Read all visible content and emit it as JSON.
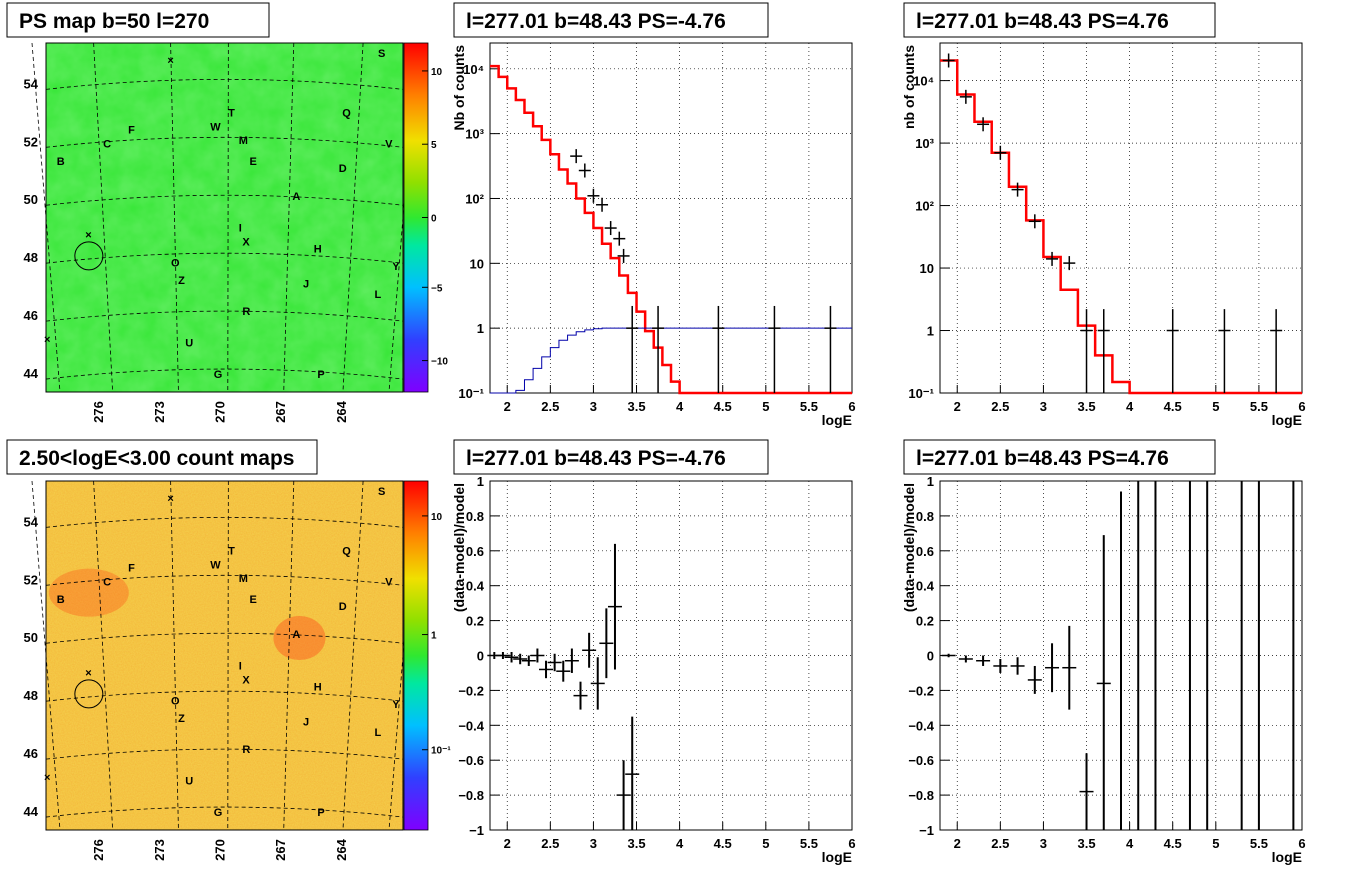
{
  "colors": {
    "map_green": "#33e833",
    "map_orange": "#f0a020",
    "model_red": "#ff0000",
    "bg_blue": "#0000aa"
  },
  "palette": [
    "#7f00ff",
    "#6a1cff",
    "#4040ff",
    "#2060ff",
    "#0090ff",
    "#00c0ff",
    "#00e0e0",
    "#00e8a0",
    "#20e860",
    "#40e020",
    "#80e000",
    "#c0e000",
    "#f0e000",
    "#ffc000",
    "#ff9000",
    "#ff6000",
    "#ff3000",
    "#ff0000"
  ],
  "chart_data": [
    {
      "id": "ps-map",
      "type": "heatmap",
      "title": "PS map b=50 l=270",
      "x_ticks": [
        "276",
        "273",
        "270",
        "267",
        "264"
      ],
      "y_ticks": [
        "54",
        "52",
        "50",
        "48",
        "46",
        "44"
      ],
      "colorbar_ticks": [
        "10",
        "5",
        "0",
        "−5",
        "−10"
      ],
      "labels": [
        "S",
        "T",
        "W",
        "Q",
        "F",
        "C",
        "M",
        "V",
        "B",
        "E",
        "D",
        "A",
        "I",
        "X",
        "H",
        "O",
        "Y",
        "Z",
        "J",
        "L",
        "R",
        "U",
        "G",
        "P"
      ]
    },
    {
      "id": "count-map",
      "type": "heatmap",
      "title": "2.50<logE<3.00 count maps",
      "x_ticks": [
        "276",
        "273",
        "270",
        "267",
        "264"
      ],
      "y_ticks": [
        "54",
        "52",
        "50",
        "48",
        "46",
        "44"
      ],
      "colorbar_ticks": [
        "10",
        "1",
        "10⁻¹"
      ],
      "labels": [
        "S",
        "T",
        "W",
        "Q",
        "F",
        "C",
        "M",
        "V",
        "B",
        "E",
        "D",
        "A",
        "I",
        "X",
        "H",
        "O",
        "Y",
        "Z",
        "J",
        "L",
        "R",
        "U",
        "G",
        "P"
      ]
    },
    {
      "id": "spectrum-neg",
      "type": "line",
      "title": "l=277.01 b=48.43 PS=-4.76",
      "xlabel": "logE",
      "ylabel": "Nb of counts",
      "x_ticks": [
        "2",
        "2.5",
        "3",
        "3.5",
        "4",
        "4.5",
        "5",
        "5.5",
        "6"
      ],
      "y_ticks": [
        "10⁻¹",
        "1",
        "10",
        "10²",
        "10³",
        "10⁴"
      ],
      "xlim": [
        1.8,
        6
      ],
      "ylog": true,
      "ylim": [
        0.1,
        25000
      ],
      "series": [
        {
          "kind": "model",
          "bin_width": 0.1,
          "x_start": 1.8,
          "values": [
            11000,
            7500,
            5000,
            3300,
            2100,
            1300,
            800,
            480,
            280,
            170,
            100,
            60,
            35,
            20,
            12,
            6.5,
            3.5,
            1.8,
            0.9,
            0.5,
            0.27,
            0.15,
            0.1,
            0.1,
            0.1,
            0.1,
            0.1,
            0.1,
            0.1,
            0.1,
            0.1,
            0.1,
            0.1,
            0.1,
            0.1,
            0.1,
            0.1,
            0.1,
            0.1,
            0.1,
            0.1,
            0.1
          ]
        },
        {
          "kind": "background",
          "bin_width": 0.1,
          "x_start": 1.8,
          "values": [
            0.05,
            0.06,
            0.08,
            0.11,
            0.16,
            0.24,
            0.36,
            0.5,
            0.65,
            0.78,
            0.88,
            0.94,
            0.98,
            1,
            1,
            1,
            1,
            1,
            1,
            1,
            1,
            1,
            1,
            1,
            1,
            1,
            1,
            1,
            1,
            1,
            1,
            1,
            1,
            1,
            1,
            1,
            1,
            1,
            1,
            1,
            1,
            1
          ]
        },
        {
          "kind": "data",
          "x": [
            2.8,
            2.9,
            3.0,
            3.1,
            3.2,
            3.3,
            3.35,
            3.45,
            3.75,
            4.45,
            5.1,
            5.75
          ],
          "y": [
            450,
            270,
            110,
            80,
            35,
            24,
            13,
            1,
            1,
            1,
            1,
            1
          ]
        }
      ]
    },
    {
      "id": "spectrum-pos",
      "type": "line",
      "title": "l=277.01 b=48.43 PS=4.76",
      "xlabel": "logE",
      "ylabel": "nb of counts",
      "x_ticks": [
        "2",
        "2.5",
        "3",
        "3.5",
        "4",
        "4.5",
        "5",
        "5.5",
        "6"
      ],
      "y_ticks": [
        "10⁻¹",
        "1",
        "10",
        "10²",
        "10³",
        "10⁴"
      ],
      "xlim": [
        1.8,
        6
      ],
      "ylog": true,
      "ylim": [
        0.1,
        40000
      ],
      "series": [
        {
          "kind": "model",
          "bin_width": 0.2,
          "x_start": 1.8,
          "values": [
            21000,
            6000,
            2200,
            700,
            200,
            58,
            15,
            4.5,
            1.2,
            0.4,
            0.15,
            0.1,
            0.1,
            0.1,
            0.1,
            0.1,
            0.1,
            0.1,
            0.1,
            0.1,
            0.1
          ]
        },
        {
          "kind": "data",
          "x": [
            1.9,
            2.1,
            2.3,
            2.5,
            2.7,
            2.9,
            3.1,
            3.3,
            3.5,
            3.7,
            4.5,
            5.1,
            5.7
          ],
          "y": [
            21000,
            5500,
            2000,
            700,
            180,
            56,
            14,
            12,
            1,
            1,
            1,
            1,
            1
          ]
        }
      ]
    },
    {
      "id": "residual-neg",
      "type": "scatter",
      "title": "l=277.01 b=48.43 PS=-4.76",
      "xlabel": "logE",
      "ylabel": "(data-model)/model",
      "x_ticks": [
        "2",
        "2.5",
        "3",
        "3.5",
        "4",
        "4.5",
        "5",
        "5.5",
        "6"
      ],
      "y_ticks": [
        "−1",
        "−0.8",
        "−0.6",
        "−0.4",
        "−0.2",
        "0",
        "0.2",
        "0.4",
        "0.6",
        "0.8",
        "1"
      ],
      "xlim": [
        1.8,
        6
      ],
      "ylim": [
        -1,
        1
      ],
      "points": [
        {
          "x": 1.85,
          "y": 0.0,
          "e": 0.02
        },
        {
          "x": 1.95,
          "y": 0.0,
          "e": 0.02
        },
        {
          "x": 2.05,
          "y": -0.01,
          "e": 0.03
        },
        {
          "x": 2.15,
          "y": -0.02,
          "e": 0.03
        },
        {
          "x": 2.25,
          "y": -0.03,
          "e": 0.03
        },
        {
          "x": 2.35,
          "y": 0.0,
          "e": 0.04
        },
        {
          "x": 2.45,
          "y": -0.08,
          "e": 0.05
        },
        {
          "x": 2.55,
          "y": -0.04,
          "e": 0.05
        },
        {
          "x": 2.65,
          "y": -0.09,
          "e": 0.06
        },
        {
          "x": 2.75,
          "y": -0.03,
          "e": 0.07
        },
        {
          "x": 2.85,
          "y": -0.23,
          "e": 0.08
        },
        {
          "x": 2.95,
          "y": 0.03,
          "e": 0.1
        },
        {
          "x": 3.05,
          "y": -0.16,
          "e": 0.15
        },
        {
          "x": 3.15,
          "y": 0.07,
          "e": 0.2
        },
        {
          "x": 3.25,
          "y": 0.28,
          "e": 0.36
        },
        {
          "x": 3.35,
          "y": -0.8,
          "e": 0.2
        },
        {
          "x": 3.45,
          "y": -0.68,
          "e": 0.33
        }
      ]
    },
    {
      "id": "residual-pos",
      "type": "scatter",
      "title": "l=277.01 b=48.43 PS=4.76",
      "xlabel": "logE",
      "ylabel": "(data-model)/model",
      "x_ticks": [
        "2",
        "2.5",
        "3",
        "3.5",
        "4",
        "4.5",
        "5",
        "5.5",
        "6"
      ],
      "y_ticks": [
        "−1",
        "−0.8",
        "−0.6",
        "−0.4",
        "−0.2",
        "0",
        "0.2",
        "0.4",
        "0.6",
        "0.8",
        "1"
      ],
      "xlim": [
        1.8,
        6
      ],
      "ylim": [
        -1,
        1
      ],
      "points": [
        {
          "x": 1.9,
          "y": 0.0,
          "e": 0.01
        },
        {
          "x": 2.1,
          "y": -0.02,
          "e": 0.02
        },
        {
          "x": 2.3,
          "y": -0.03,
          "e": 0.03
        },
        {
          "x": 2.5,
          "y": -0.06,
          "e": 0.04
        },
        {
          "x": 2.7,
          "y": -0.06,
          "e": 0.05
        },
        {
          "x": 2.9,
          "y": -0.14,
          "e": 0.08
        },
        {
          "x": 3.1,
          "y": -0.07,
          "e": 0.14
        },
        {
          "x": 3.3,
          "y": -0.07,
          "e": 0.24
        },
        {
          "x": 3.5,
          "y": -0.78,
          "e": 0.22
        },
        {
          "x": 3.7,
          "y": -0.16,
          "e": 0.85
        },
        {
          "x": 3.9,
          "y": -1,
          "e": 1.94
        },
        {
          "x": 4.1,
          "y": -1,
          "e": 3
        },
        {
          "x": 4.3,
          "y": -1,
          "e": 3
        },
        {
          "x": 4.7,
          "y": -1,
          "e": 3
        },
        {
          "x": 4.9,
          "y": -1,
          "e": 3
        },
        {
          "x": 5.3,
          "y": -1,
          "e": 3
        },
        {
          "x": 5.5,
          "y": -1,
          "e": 3
        },
        {
          "x": 5.9,
          "y": -1,
          "e": 3
        }
      ]
    }
  ]
}
